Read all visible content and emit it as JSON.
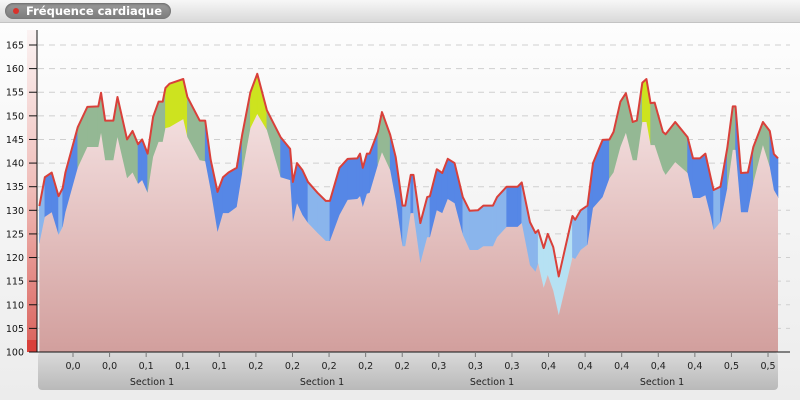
{
  "header": {
    "title": "Fréquence cardiaque",
    "indicator_color": "#d9322c"
  },
  "chart_data": {
    "type": "area",
    "title": "Fréquence cardiaque",
    "xlabel": "",
    "ylabel": "",
    "ylim": [
      100,
      165
    ],
    "xlim": [
      0,
      0.54
    ],
    "grid": true,
    "y_ticks": [
      "100",
      "105",
      "110",
      "115",
      "120",
      "125",
      "130",
      "135",
      "140",
      "145",
      "150",
      "155",
      "160",
      "165"
    ],
    "x_tick_labels": [
      "0,0",
      "0,0",
      "0,1",
      "0,1",
      "0,1",
      "0,2",
      "0,2",
      "0,2",
      "0,2",
      "0,2",
      "0,3",
      "0,3",
      "0,3",
      "0,4",
      "0,4",
      "0,4",
      "0,4",
      "0,4",
      "0,5",
      "0,5"
    ],
    "section_labels": [
      "Section 1",
      "Section 1",
      "Section 1",
      "Section 1"
    ],
    "colors": {
      "line": "#d9403a",
      "zone_yellow": "#cde31f",
      "zone_green": "#94b894",
      "zone_blue": "#5687e6",
      "zone_lightblue": "#8ab5ec",
      "zone_pale": "#b6e1f3",
      "base_top": "#f3dfdf",
      "base_bottom": "#d29f9d"
    },
    "zones": [
      {
        "min": 155,
        "color": "zone_yellow"
      },
      {
        "min": 145,
        "color": "zone_green"
      },
      {
        "min": 135,
        "color": "zone_blue"
      },
      {
        "min": 125,
        "color": "zone_lightblue"
      },
      {
        "min": 0,
        "color": "zone_pale"
      }
    ],
    "series": [
      {
        "key": "heart_rate",
        "x": [
          0.001,
          0.005,
          0.01,
          0.015,
          0.018,
          0.02,
          0.029,
          0.036,
          0.044,
          0.046,
          0.049,
          0.055,
          0.058,
          0.065,
          0.069,
          0.073,
          0.076,
          0.08,
          0.084,
          0.088,
          0.091,
          0.093,
          0.096,
          0.106,
          0.109,
          0.118,
          0.122,
          0.126,
          0.131,
          0.135,
          0.139,
          0.145,
          0.149,
          0.155,
          0.16,
          0.167,
          0.177,
          0.184,
          0.186,
          0.189,
          0.193,
          0.197,
          0.204,
          0.21,
          0.213,
          0.22,
          0.226,
          0.233,
          0.235,
          0.237,
          0.24,
          0.242,
          0.248,
          0.251,
          0.257,
          0.261,
          0.266,
          0.268,
          0.272,
          0.274,
          0.279,
          0.284,
          0.286,
          0.291,
          0.295,
          0.299,
          0.304,
          0.31,
          0.315,
          0.321,
          0.325,
          0.332,
          0.335,
          0.342,
          0.35,
          0.353,
          0.359,
          0.363,
          0.365,
          0.369,
          0.372,
          0.376,
          0.38,
          0.39,
          0.392,
          0.396,
          0.401,
          0.405,
          0.412,
          0.417,
          0.42,
          0.425,
          0.429,
          0.434,
          0.437,
          0.441,
          0.444,
          0.447,
          0.45,
          0.456,
          0.458,
          0.465,
          0.474,
          0.478,
          0.483,
          0.487,
          0.491,
          0.493,
          0.498,
          0.503,
          0.507,
          0.509,
          0.513,
          0.518,
          0.522,
          0.529,
          0.534,
          0.537,
          0.54
        ],
        "values": [
          130.9,
          137,
          138,
          133,
          134.7,
          138,
          147.6,
          151.9,
          152,
          154.9,
          149,
          149,
          154,
          145,
          146.8,
          144,
          145,
          142,
          149.8,
          153,
          153,
          155.9,
          156.8,
          157.8,
          154,
          149,
          149,
          140.7,
          133.9,
          137,
          138,
          139,
          146,
          155,
          158.9,
          151.2,
          145.5,
          143,
          136,
          140,
          138.5,
          136,
          133.7,
          132,
          132,
          139,
          140.9,
          141,
          142,
          139,
          142,
          142,
          146.6,
          150.8,
          146,
          141.3,
          131,
          131,
          137.5,
          137.5,
          127.3,
          132.8,
          133,
          138.7,
          137.9,
          140.9,
          140,
          132.8,
          129.9,
          130,
          131,
          131,
          132.8,
          135,
          135,
          135.9,
          127.5,
          125.2,
          125.8,
          122,
          125,
          122.2,
          116,
          128.8,
          128,
          130,
          131,
          140,
          144.9,
          145,
          146.6,
          153,
          154.8,
          148.7,
          149,
          157,
          157.8,
          152.7,
          152.8,
          146.6,
          146.1,
          148.7,
          145.5,
          141,
          141,
          142,
          136.8,
          134.3,
          135,
          143.2,
          152,
          152,
          137.9,
          138,
          143.4,
          148.7,
          146.8,
          141.9,
          141
        ]
      },
      {
        "key": "lower_band",
        "values": [
          123,
          128.6,
          129.6,
          124.8,
          126.5,
          129.6,
          139,
          143.4,
          143.4,
          146.4,
          140.6,
          140.6,
          145.5,
          136.8,
          138,
          135.6,
          136.4,
          133.7,
          141.3,
          144.5,
          144.5,
          147.4,
          147.6,
          149.3,
          145.5,
          140.6,
          140.4,
          134.3,
          125.4,
          129.4,
          129.4,
          130.7,
          137.9,
          147.4,
          150.4,
          147,
          137,
          136.4,
          127.5,
          131.5,
          129,
          127.3,
          125.2,
          123.5,
          123.5,
          129,
          132.2,
          132.4,
          133,
          130.7,
          133.5,
          133.7,
          139.6,
          142.3,
          138.5,
          132.2,
          122.4,
          122.4,
          129.4,
          129.4,
          118.8,
          124.3,
          124.3,
          130,
          129.4,
          132.4,
          131.5,
          124.8,
          121.6,
          121.6,
          122.4,
          122.4,
          124.3,
          126.5,
          126.5,
          127.3,
          118.4,
          117,
          118.8,
          113.6,
          116.3,
          113,
          107.8,
          120,
          119.7,
          121.6,
          122.7,
          130.5,
          132.8,
          136.8,
          138,
          143.4,
          146.4,
          140.6,
          140.6,
          148.7,
          148.7,
          143.8,
          143.8,
          138.5,
          137.5,
          140.2,
          137.9,
          132.6,
          132.6,
          133.2,
          128.6,
          125.8,
          127.5,
          134.7,
          142.8,
          142.8,
          129.6,
          129.6,
          135.8,
          143.8,
          139.2,
          134.3,
          132.8
        ]
      }
    ]
  }
}
